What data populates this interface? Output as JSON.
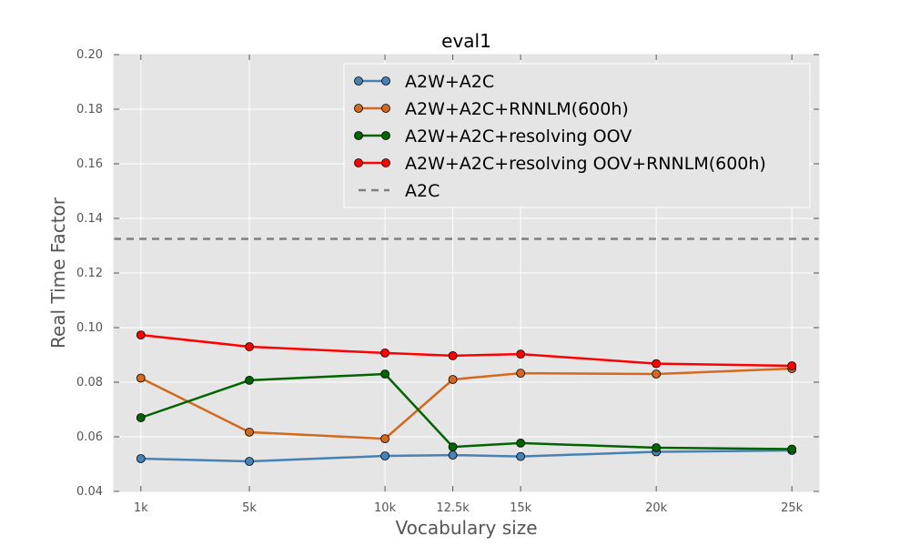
{
  "chart_data": {
    "type": "line",
    "title": "eval1",
    "xlabel": "Vocabulary size",
    "ylabel": "Real Time Factor",
    "categories": [
      "1k",
      "5k",
      "10k",
      "12.5k",
      "15k",
      "20k",
      "25k"
    ],
    "x": [
      1000,
      5000,
      10000,
      12500,
      15000,
      20000,
      25000
    ],
    "xlim": [
      0,
      26000
    ],
    "ylim": [
      0.04,
      0.2
    ],
    "yticks": [
      0.04,
      0.06,
      0.08,
      0.1,
      0.12,
      0.14,
      0.16,
      0.18,
      0.2
    ],
    "ytick_labels": [
      "0.04",
      "0.06",
      "0.08",
      "0.10",
      "0.12",
      "0.14",
      "0.16",
      "0.18",
      "0.20"
    ],
    "grid": true,
    "legend_position": "top-right",
    "series": [
      {
        "name": "A2W+A2C",
        "color": "#4682b4",
        "values": [
          0.052,
          0.051,
          0.053,
          0.0533,
          0.0528,
          0.0545,
          0.055
        ]
      },
      {
        "name": "A2W+A2C+RNNLM(600h)",
        "color": "#d2691e",
        "values": [
          0.0815,
          0.0617,
          0.0593,
          0.081,
          0.0833,
          0.083,
          0.085
        ]
      },
      {
        "name": "A2W+A2C+resolving OOV",
        "color": "#006400",
        "values": [
          0.067,
          0.0807,
          0.083,
          0.0563,
          0.0577,
          0.056,
          0.0555
        ]
      },
      {
        "name": "A2W+A2C+resolving OOV+RNNLM(600h)",
        "color": "#ff0000",
        "values": [
          0.0973,
          0.093,
          0.0907,
          0.0897,
          0.0903,
          0.0868,
          0.086
        ]
      }
    ],
    "reference_line": {
      "name": "A2C",
      "value": 0.1325,
      "color": "#808080",
      "style": "dashed"
    }
  }
}
